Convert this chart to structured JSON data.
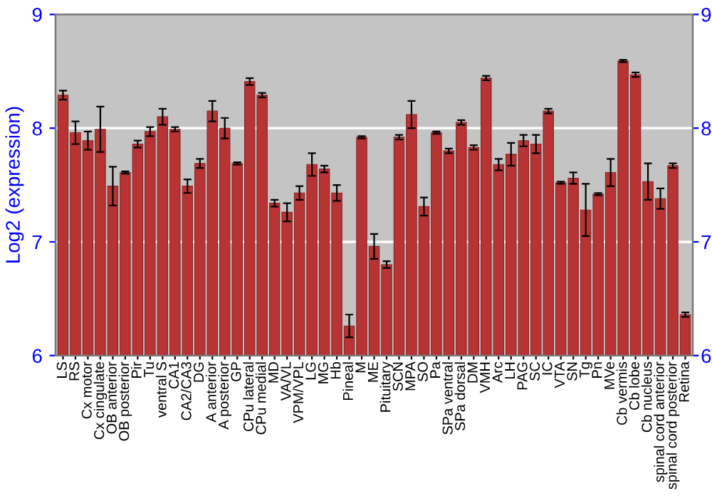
{
  "chart_data": {
    "type": "bar",
    "ylabel": "Log2 (expression)",
    "categories": [
      "LS",
      "RS",
      "Cx motor",
      "Cx cingulate",
      "OB anterior",
      "OB posterior",
      "Pir",
      "Tu",
      "ventral S",
      "CA1",
      "CA2/CA3",
      "DG",
      "A anterior",
      "A posterior",
      "GP",
      "CPu lateral",
      "CPu medial",
      "MD",
      "VA/VL",
      "VPM/VPL",
      "LG",
      "MG",
      "Hb",
      "Pineal",
      "M",
      "ME",
      "Pituitary",
      "SCN",
      "MPA",
      "SO",
      "Pa",
      "SPa ventral",
      "SPa dorsal",
      "DM",
      "VMH",
      "Arc",
      "LH",
      "PAG",
      "SC",
      "IC",
      "VTA",
      "SN",
      "Tg",
      "Pn",
      "MVe",
      "Cb vermis",
      "Cb lobe",
      "Cb nucleus",
      "spinal cord anterior",
      "spinal cord posterior",
      "Retina"
    ],
    "values": [
      8.29,
      7.96,
      7.89,
      7.99,
      7.49,
      7.61,
      7.86,
      7.97,
      8.1,
      7.99,
      7.49,
      7.69,
      8.15,
      8.0,
      7.69,
      8.41,
      8.29,
      7.34,
      7.26,
      7.43,
      7.68,
      7.64,
      7.43,
      6.26,
      7.92,
      6.96,
      6.8,
      7.92,
      8.12,
      7.31,
      7.96,
      7.8,
      8.05,
      7.83,
      8.44,
      7.68,
      7.77,
      7.89,
      7.86,
      8.15,
      7.52,
      7.56,
      7.28,
      7.42,
      7.61,
      8.59,
      8.47,
      7.53,
      7.38,
      7.67,
      6.36
    ],
    "errors": [
      0.04,
      0.1,
      0.08,
      0.2,
      0.17,
      0.01,
      0.03,
      0.04,
      0.07,
      0.02,
      0.06,
      0.04,
      0.09,
      0.09,
      0.01,
      0.03,
      0.02,
      0.03,
      0.08,
      0.06,
      0.1,
      0.03,
      0.07,
      0.1,
      0.01,
      0.11,
      0.03,
      0.02,
      0.12,
      0.08,
      0.01,
      0.02,
      0.02,
      0.02,
      0.02,
      0.05,
      0.1,
      0.05,
      0.08,
      0.02,
      0.01,
      0.05,
      0.23,
      0.01,
      0.12,
      0.01,
      0.02,
      0.16,
      0.09,
      0.02,
      0.02
    ],
    "color": "#b83434",
    "ylim": [
      6,
      9
    ],
    "yticks": [
      6,
      7,
      8,
      9
    ],
    "y2lim": [
      6,
      9
    ],
    "y2ticks": [
      6,
      7,
      8,
      9
    ],
    "grid": "y"
  }
}
